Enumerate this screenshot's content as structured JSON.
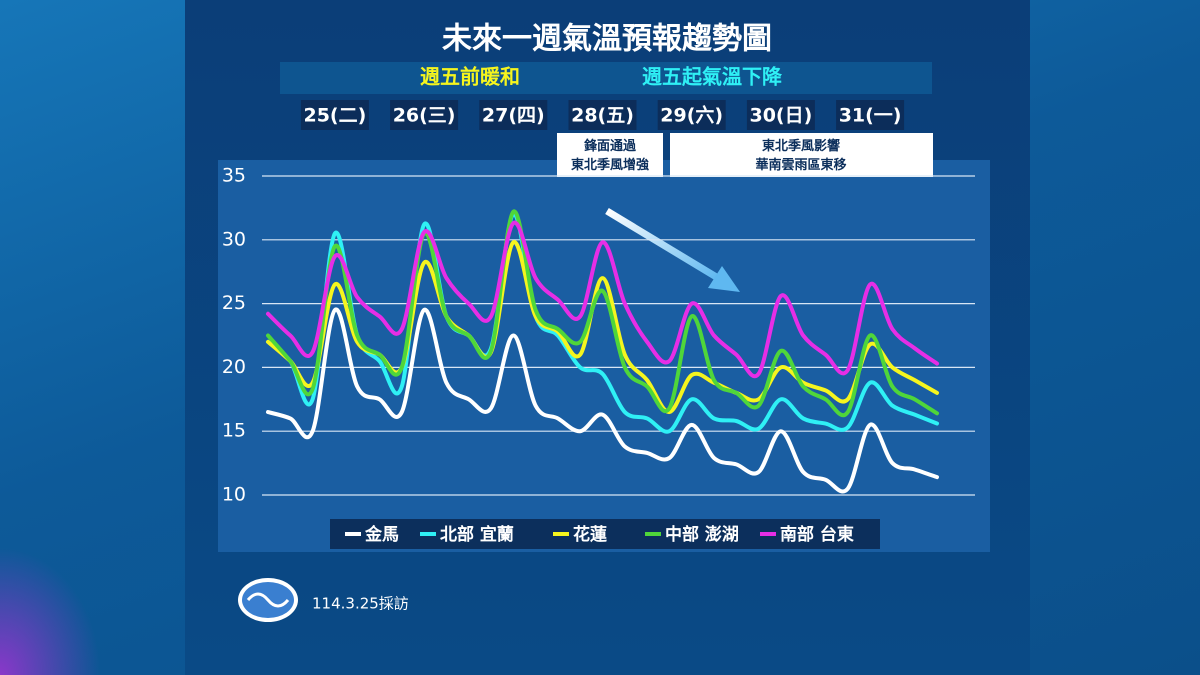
{
  "chart_data": {
    "type": "line",
    "title": "未來一週氣溫預報趨勢圖",
    "subtitle_left": "週五前暖和",
    "subtitle_right": "週五起氣溫下降",
    "annotations": [
      "鋒面通過\n東北季風增強",
      "東北季風影響\n華南雲雨區東移"
    ],
    "source": "114.3.25採訪",
    "categories": [
      null,
      null,
      null,
      "25(二)",
      null,
      null,
      null,
      "26(三)",
      null,
      null,
      null,
      "27(四)",
      null,
      null,
      null,
      "28(五)",
      null,
      null,
      null,
      "29(六)",
      null,
      null,
      null,
      "30(日)",
      null,
      null,
      null,
      "31(一)",
      null,
      null,
      null
    ],
    "ylim": [
      10,
      35
    ],
    "yticks": [
      10,
      15,
      20,
      25,
      30,
      35
    ],
    "grid": true,
    "series": [
      {
        "name": "金馬",
        "color": "#ffffff",
        "values": [
          16.5,
          16,
          15,
          24.5,
          18.5,
          17.5,
          16.5,
          24.5,
          18.8,
          17.5,
          16.8,
          22.5,
          17,
          16,
          15,
          16.3,
          13.8,
          13.3,
          12.9,
          15.5,
          12.9,
          12.4,
          11.8,
          15,
          11.8,
          11.2,
          10.5,
          15.5,
          12.5,
          12,
          11.4
        ]
      },
      {
        "name": "北部  宜蘭",
        "color": "#2ff0f5",
        "values": [
          22,
          20.5,
          17.5,
          30.5,
          22.5,
          20.5,
          18.5,
          31.2,
          24,
          22.5,
          21.5,
          32,
          24,
          22.5,
          20,
          19.5,
          16.5,
          16,
          15,
          17.5,
          16,
          15.8,
          15.2,
          17.5,
          16,
          15.6,
          15.3,
          18.8,
          17,
          16.3,
          15.6
        ]
      },
      {
        "name": "花蓮",
        "color": "#f5f51e",
        "values": [
          22,
          20.5,
          18.8,
          26.5,
          22,
          21,
          20,
          28.2,
          24,
          22.5,
          21.2,
          29.8,
          24,
          22.8,
          21,
          27,
          21,
          19,
          16.5,
          19.4,
          18.8,
          18,
          17.5,
          20,
          18.8,
          18.2,
          17.5,
          21.8,
          20,
          19,
          18
        ]
      },
      {
        "name": "中部 澎湖",
        "color": "#4fd63a",
        "values": [
          22.5,
          20.5,
          18.3,
          29.5,
          22.5,
          21,
          20,
          30.5,
          24,
          22.5,
          21.3,
          32.2,
          24.5,
          23,
          22,
          26,
          20,
          18.5,
          16.8,
          24,
          19,
          18,
          17,
          21.3,
          18.5,
          17.5,
          16.5,
          22.5,
          18.5,
          17.5,
          16.4
        ]
      },
      {
        "name": "南部 台東",
        "color": "#e62ee6",
        "values": [
          24.2,
          22.5,
          21.2,
          28.7,
          25.5,
          24,
          23,
          30.6,
          27,
          25,
          24,
          31.3,
          27,
          25.3,
          24,
          29.8,
          25,
          22,
          20.5,
          25,
          22.5,
          21,
          19.5,
          25.6,
          22.5,
          21,
          19.8,
          26.5,
          23,
          21.5,
          20.3
        ]
      }
    ]
  }
}
